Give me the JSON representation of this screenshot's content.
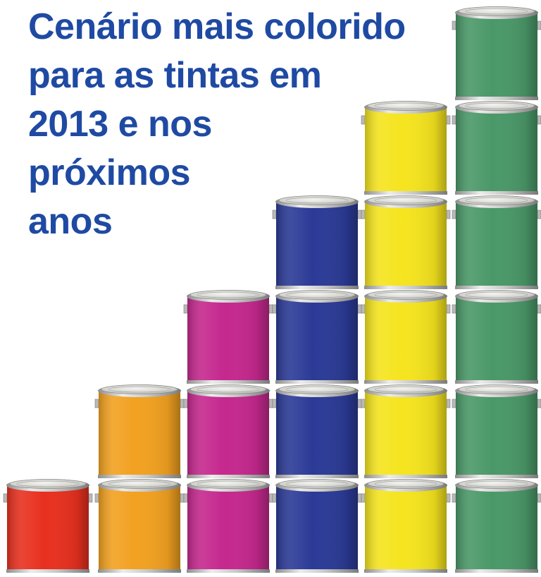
{
  "headline": {
    "lines": [
      "Cenário mais colorido",
      "para as tintas em",
      "2013 e nos",
      "próximos",
      "anos"
    ],
    "color": "#1f4aa3"
  },
  "illustration": {
    "subject": "stacked-paint-cans",
    "columns": [
      {
        "color": "#e8301f",
        "cans": 1
      },
      {
        "color": "#f2a120",
        "cans": 2
      },
      {
        "color": "#c5288e",
        "cans": 3
      },
      {
        "color": "#2b3a96",
        "cans": 4
      },
      {
        "color": "#f5e41e",
        "cans": 5
      },
      {
        "color": "#4a9868",
        "cans": 6
      }
    ]
  }
}
